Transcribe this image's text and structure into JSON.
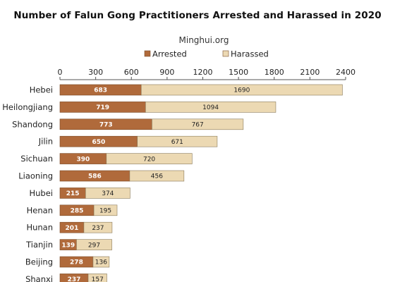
{
  "chart_data": {
    "type": "bar",
    "orientation": "horizontal",
    "stacked": true,
    "title": "Number of Falun Gong Practitioners Arrested and Harassed in 2020",
    "subtitle": "Minghui.org",
    "categories": [
      "Hebei",
      "Heilongjiang",
      "Shandong",
      "Jilin",
      "Sichuan",
      "Liaoning",
      "Hubei",
      "Henan",
      "Hunan",
      "Tianjin",
      "Beijing",
      "Shanxi"
    ],
    "series": [
      {
        "name": "Arrested",
        "color": "#b06a3b",
        "values": [
          683,
          719,
          773,
          650,
          390,
          586,
          215,
          285,
          201,
          139,
          278,
          237
        ]
      },
      {
        "name": "Harassed",
        "color": "#ecd9b3",
        "values": [
          1690,
          1094,
          767,
          671,
          720,
          456,
          374,
          195,
          237,
          297,
          136,
          157
        ]
      }
    ],
    "xlim": [
      0,
      2400
    ],
    "xticks": [
      0,
      300,
      600,
      900,
      1200,
      1500,
      1800,
      2100,
      2400
    ],
    "xaxis_position": "top",
    "legend_position": "top",
    "grid": false
  }
}
